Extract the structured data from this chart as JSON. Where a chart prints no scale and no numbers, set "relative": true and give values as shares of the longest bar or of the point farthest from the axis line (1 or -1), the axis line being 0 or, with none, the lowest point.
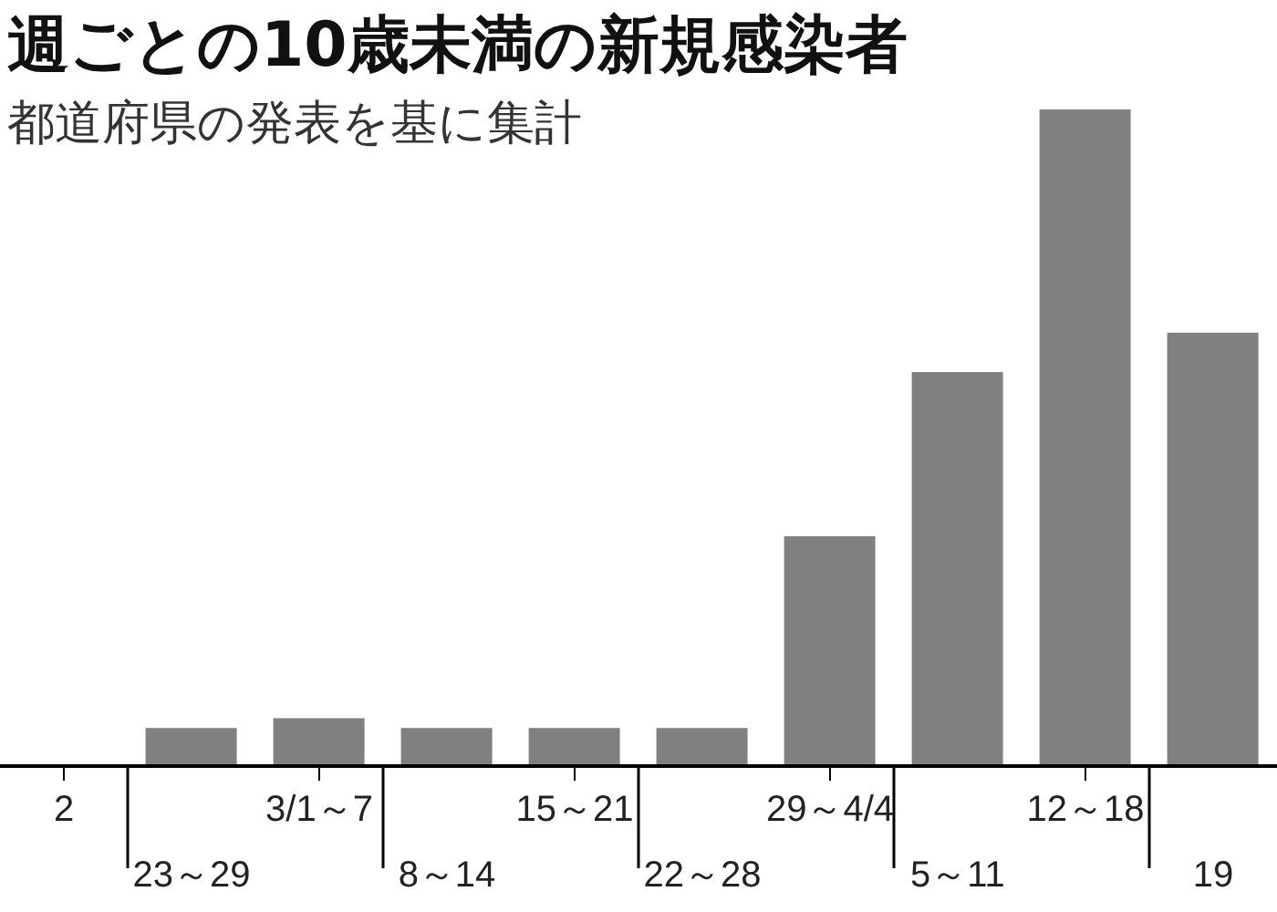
{
  "chart_data": {
    "type": "bar",
    "title": "週ごとの10歳未満の新規感染者",
    "subtitle": "都道府県の発表を基に集計",
    "relative": true,
    "categories": [
      "2",
      "23～29",
      "3/1～7",
      "8～14",
      "15～21",
      "22～28",
      "29～4/4",
      "5～11",
      "12～18",
      "19"
    ],
    "values": [
      null,
      0.058,
      0.073,
      0.058,
      0.058,
      0.058,
      0.35,
      0.6,
      1,
      0.66
    ],
    "color": "#808080",
    "grid": false,
    "legend": false
  }
}
